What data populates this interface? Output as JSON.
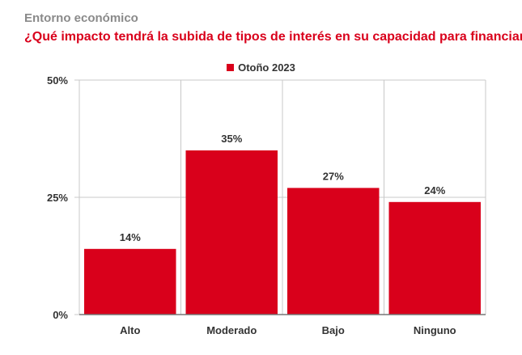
{
  "header": {
    "kicker": "Entorno económico",
    "title": "¿Qué impacto tendrá la subida de tipos de interés en su capacidad para financiarse?"
  },
  "colors": {
    "bar": "#d9001b",
    "title": "#d9001b",
    "kicker": "#8a8a8a",
    "grid": "#c8c8c8",
    "text": "#333333"
  },
  "chart_data": {
    "type": "bar",
    "title": "¿Qué impacto tendrá la subida de tipos de interés en su capacidad para financiarse?",
    "categories": [
      "Alto",
      "Moderado",
      "Bajo",
      "Ninguno"
    ],
    "series": [
      {
        "name": "Otoño 2023",
        "values": [
          14,
          35,
          27,
          24
        ]
      }
    ],
    "data_labels": [
      "14%",
      "35%",
      "27%",
      "24%"
    ],
    "ylim": [
      0,
      50
    ],
    "yticks": [
      0,
      25,
      50
    ],
    "ytick_labels": [
      "0%",
      "25%",
      "50%"
    ],
    "grid": true,
    "legend_position": "top-center",
    "xlabel": "",
    "ylabel": ""
  }
}
